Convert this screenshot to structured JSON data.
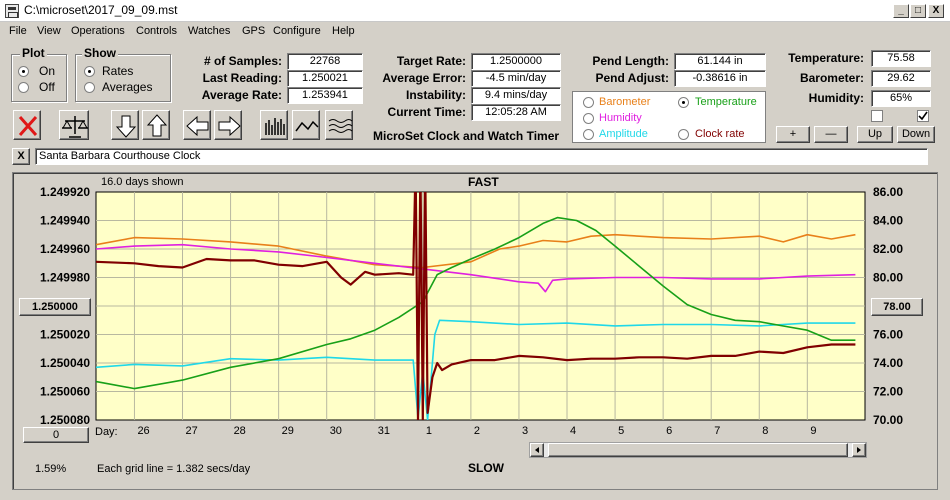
{
  "window": {
    "title": "C:\\microset\\2017_09_09.mst",
    "buttons": [
      "_",
      "□",
      "X"
    ]
  },
  "menu": [
    "File",
    "View",
    "Operations",
    "Controls",
    "Watches",
    "GPS",
    "Configure",
    "Help"
  ],
  "plot_group": {
    "title": "Plot",
    "options": [
      {
        "label": "On",
        "selected": true
      },
      {
        "label": "Off",
        "selected": false
      }
    ]
  },
  "show_group": {
    "title": "Show",
    "options": [
      {
        "label": "Rates",
        "selected": true
      },
      {
        "label": "Averages",
        "selected": false
      }
    ]
  },
  "stats": {
    "samples_label": "# of Samples:",
    "samples": "22768",
    "last_reading_label": "Last Reading:",
    "last_reading": "1.250021",
    "average_rate_label": "Average Rate:",
    "average_rate": "1.253941"
  },
  "rates": {
    "target_rate_label": "Target Rate:",
    "target_rate": "1.2500000",
    "average_error_label": "Average Error:",
    "average_error": "-4.5 min/day",
    "instability_label": "Instability:",
    "instability": "9.4 mins/day",
    "current_time_label": "Current Time:",
    "current_time": "12:05:28 AM",
    "app_caption": "MicroSet Clock and Watch Timer"
  },
  "pendulum": {
    "length_label": "Pend Length:",
    "length": "61.144 in",
    "adjust_label": "Pend Adjust:",
    "adjust": "-0.38616 in"
  },
  "right_params": [
    {
      "label": "Barometer",
      "selected": false,
      "color": "#e8801a"
    },
    {
      "label": "Temperature",
      "selected": true,
      "color": "#18a018"
    },
    {
      "label": "Humidity",
      "selected": false,
      "color": "#e020e0"
    },
    {
      "label": "Amplitude",
      "selected": false,
      "color": "#20d8e8"
    },
    {
      "label": "Clock rate",
      "selected": false,
      "color": "#800000"
    }
  ],
  "environment": {
    "temperature_label": "Temperature:",
    "temperature": "75.58",
    "barometer_label": "Barometer:",
    "barometer": "29.62",
    "humidity_label": "Humidity:",
    "humidity": "65%"
  },
  "adjust_buttons": [
    "+",
    "—",
    "Up",
    "Down"
  ],
  "watch_name": "Santa Barbara Courthouse Clock",
  "watch_close": "X",
  "left_center_button": "1.250000",
  "left_bottom_button": "0",
  "right_center_button": "78.00",
  "zoom_percent": "1.59%",
  "chart_data": {
    "type": "line",
    "days_shown": "16.0 days shown",
    "top_label": "FAST",
    "bottom_label": "SLOW",
    "grid_note": "Each grid line = 1.382 secs/day",
    "xlabel": "Day:",
    "x_ticks": [
      {
        "label": "26",
        "x": 1
      },
      {
        "label": "27",
        "x": 2
      },
      {
        "label": "28",
        "x": 3
      },
      {
        "label": "29",
        "x": 4
      },
      {
        "label": "30",
        "x": 5
      },
      {
        "label": "31",
        "x": 6
      },
      {
        "label": "1",
        "x": 7
      },
      {
        "label": "2",
        "x": 8
      },
      {
        "label": "3",
        "x": 9
      },
      {
        "label": "4",
        "x": 10
      },
      {
        "label": "5",
        "x": 11
      },
      {
        "label": "6",
        "x": 12
      },
      {
        "label": "7",
        "x": 13
      },
      {
        "label": "8",
        "x": 14
      },
      {
        "label": "9",
        "x": 15
      }
    ],
    "xlim": [
      0.2,
      16.2
    ],
    "left_axis": {
      "ticks": [
        "1.249920",
        "1.249940",
        "1.249960",
        "1.249980",
        "1.250000",
        "1.250020",
        "1.250040",
        "1.250060",
        "1.250080"
      ],
      "ylim": [
        1.24992,
        1.25008
      ]
    },
    "right_axis": {
      "ticks": [
        "86.00",
        "84.00",
        "82.00",
        "80.00",
        "78.00",
        "76.00",
        "74.00",
        "72.00",
        "70.00"
      ],
      "ylim": [
        70,
        86
      ]
    },
    "series": [
      {
        "name": "Barometer",
        "color": "#e8801a",
        "axis": "left",
        "x": [
          0.2,
          1.0,
          2.0,
          3.0,
          4.0,
          5.0,
          6.0,
          7.0,
          8.0,
          8.6,
          9.0,
          9.5,
          10.0,
          10.5,
          11.0,
          12.0,
          13.0,
          14.0,
          14.5,
          15.0,
          15.5,
          16.0
        ],
        "y": [
          1.249957,
          1.249952,
          1.249953,
          1.249955,
          1.249958,
          1.249965,
          1.249971,
          1.249973,
          1.249969,
          1.24996,
          1.249958,
          1.249954,
          1.249955,
          1.249951,
          1.24995,
          1.249952,
          1.249953,
          1.249951,
          1.249955,
          1.24995,
          1.249953,
          1.24995
        ]
      },
      {
        "name": "Humidity",
        "color": "#e020e0",
        "axis": "left",
        "x": [
          0.2,
          1.0,
          2.0,
          3.0,
          4.0,
          5.0,
          6.0,
          7.0,
          8.0,
          9.0,
          9.4,
          9.55,
          9.7,
          10.0,
          11.0,
          12.0,
          13.0,
          14.0,
          15.0,
          16.0
        ],
        "y": [
          1.24996,
          1.249958,
          1.249957,
          1.24996,
          1.249962,
          1.249966,
          1.24997,
          1.249974,
          1.249978,
          1.249983,
          1.249984,
          1.24999,
          1.249982,
          1.249981,
          1.24998,
          1.24998,
          1.249981,
          1.249981,
          1.249979,
          1.249978
        ]
      },
      {
        "name": "Amplitude",
        "color": "#20d8e8",
        "axis": "left",
        "x": [
          0.2,
          1.0,
          2.0,
          3.0,
          4.0,
          5.0,
          6.0,
          6.8,
          6.9,
          7.0,
          7.1,
          7.25,
          7.35,
          8.0,
          9.0,
          10.0,
          11.0,
          12.0,
          13.0,
          14.0,
          15.0,
          16.0
        ],
        "y": [
          1.250043,
          1.250041,
          1.250042,
          1.250037,
          1.250038,
          1.250036,
          1.250038,
          1.250038,
          1.250079,
          1.250046,
          1.25008,
          1.25002,
          1.25001,
          1.250011,
          1.250013,
          1.250012,
          1.250014,
          1.250013,
          1.250013,
          1.250014,
          1.250012,
          1.250012
        ]
      },
      {
        "name": "Temperature",
        "color": "#18a018",
        "axis": "right",
        "x": [
          0.2,
          1.0,
          2.0,
          3.0,
          4.0,
          5.0,
          5.5,
          6.0,
          6.5,
          7.0,
          7.3,
          7.6,
          8.0,
          8.5,
          9.0,
          9.5,
          9.8,
          10.2,
          10.6,
          11.0,
          11.5,
          12.0,
          12.5,
          13.0,
          13.5,
          14.0,
          14.5,
          15.0,
          15.5,
          16.0
        ],
        "y": [
          72.7,
          72.2,
          72.8,
          73.7,
          74.3,
          75.3,
          75.7,
          76.3,
          77.2,
          78.3,
          80.2,
          80.7,
          81.3,
          82.0,
          82.8,
          83.8,
          84.2,
          84.0,
          83.3,
          82.2,
          80.8,
          79.4,
          78.1,
          77.4,
          77.0,
          76.9,
          76.6,
          76.3,
          75.6,
          75.6
        ]
      },
      {
        "name": "Clock rate",
        "color": "#800000",
        "axis": "left",
        "x": [
          0.2,
          1.0,
          1.5,
          2.0,
          2.5,
          3.0,
          3.5,
          4.0,
          4.5,
          5.0,
          5.3,
          5.5,
          5.8,
          6.0,
          6.5,
          6.8,
          6.85,
          6.9,
          6.95,
          7.0,
          7.05,
          7.1,
          7.2,
          7.3,
          7.4,
          7.6,
          8.0,
          8.5,
          9.0,
          9.5,
          10.0,
          10.5,
          11.0,
          11.5,
          12.0,
          12.5,
          13.0,
          13.5,
          14.0,
          14.5,
          15.0,
          15.5,
          16.0
        ],
        "y": [
          1.249969,
          1.24997,
          1.249972,
          1.249973,
          1.249967,
          1.249968,
          1.249968,
          1.249971,
          1.249972,
          1.249969,
          1.24998,
          1.249985,
          1.249976,
          1.249978,
          1.249977,
          1.249978,
          1.2499,
          1.25008,
          1.2499,
          1.25008,
          1.2499,
          1.250075,
          1.25005,
          1.25004,
          1.250045,
          1.250041,
          1.250038,
          1.250038,
          1.250035,
          1.250036,
          1.250038,
          1.250037,
          1.250037,
          1.250036,
          1.250036,
          1.250037,
          1.250035,
          1.250035,
          1.250032,
          1.250033,
          1.250029,
          1.250027,
          1.250027
        ]
      }
    ]
  }
}
